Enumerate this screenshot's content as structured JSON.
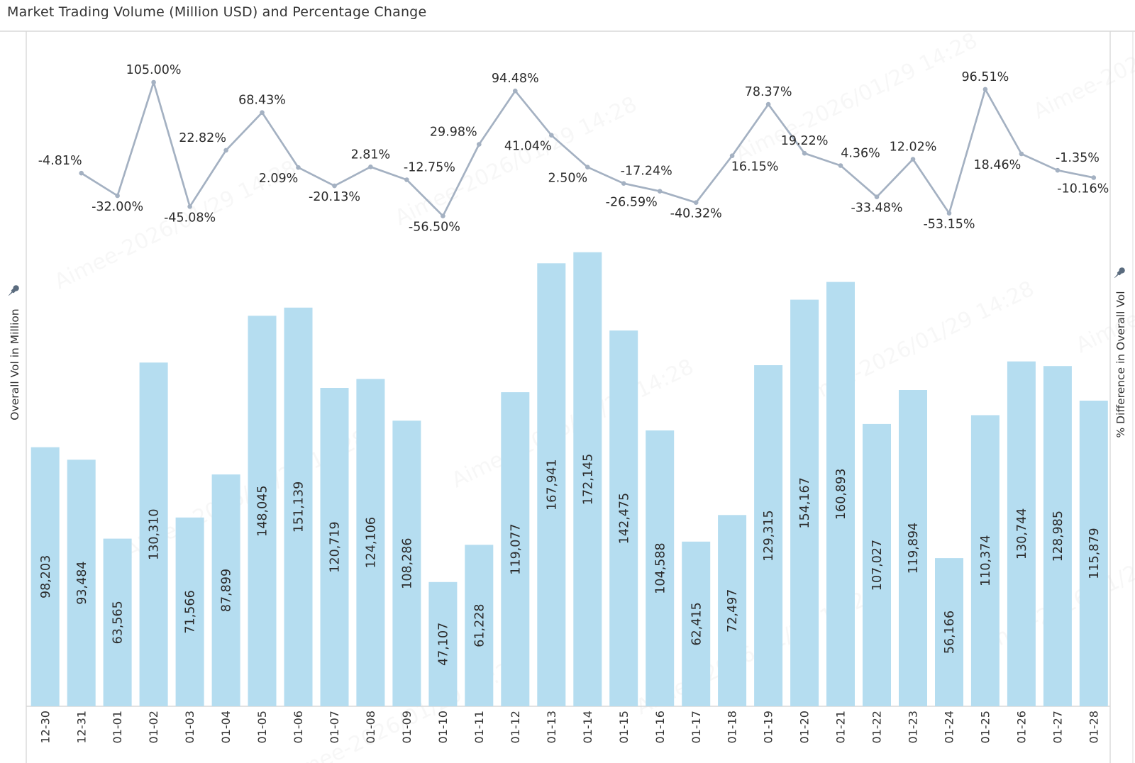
{
  "title": "Market Trading Volume (Million USD) and Percentage Change",
  "left_axis": {
    "title": "Overall Vol in Million",
    "icon": "pushpin-icon"
  },
  "right_axis": {
    "title": "% Difference in Overall Vol",
    "icon": "pushpin-icon"
  },
  "watermark_text": "Aimee-2026/01/29 14:28",
  "colors": {
    "bar": "#b5ddf0",
    "line": "#a4b1c2",
    "marker": "#a4b1c2",
    "label_text": "#2b2b2b",
    "axis_text": "#333333",
    "frame": "#d8d8d8",
    "pin": "#5a6b7e"
  },
  "chart_data": [
    {
      "type": "bar",
      "title": "Market Trading Volume (Million USD) and Percentage Change",
      "categories": [
        "12-30",
        "12-31",
        "01-01",
        "01-02",
        "01-03",
        "01-04",
        "01-05",
        "01-06",
        "01-07",
        "01-08",
        "01-09",
        "01-10",
        "01-11",
        "01-12",
        "01-13",
        "01-14",
        "01-15",
        "01-16",
        "01-17",
        "01-18",
        "01-19",
        "01-20",
        "01-21",
        "01-22",
        "01-23",
        "01-24",
        "01-25",
        "01-26",
        "01-27",
        "01-28"
      ],
      "values": [
        98203,
        93484,
        63565,
        130310,
        71566,
        87899,
        148045,
        151139,
        120719,
        124106,
        108286,
        47107,
        61228,
        119077,
        167941,
        172145,
        142475,
        104588,
        62415,
        72497,
        129315,
        154167,
        160893,
        107027,
        119894,
        56166,
        110374,
        130744,
        128985,
        115879
      ],
      "value_labels": [
        "98,203",
        "93,484",
        "63,565",
        "130,310",
        "71,566",
        "87,899",
        "148,045",
        "151,139",
        "120,719",
        "124,106",
        "108,286",
        "47,107",
        "61,228",
        "119,077",
        "167,941",
        "172,145",
        "142,475",
        "104,588",
        "62,415",
        "72,497",
        "129,315",
        "154,167",
        "160,893",
        "107,027",
        "119,894",
        "56,166",
        "110,374",
        "130,744",
        "128,985",
        "115,879"
      ],
      "xlabel": "",
      "ylabel": "Overall Vol in Million",
      "ylim": [
        0,
        180000
      ],
      "grid": false,
      "legend": "none"
    },
    {
      "type": "line",
      "categories": [
        "12-31",
        "01-01",
        "01-02",
        "01-03",
        "01-04",
        "01-05",
        "01-06",
        "01-07",
        "01-08",
        "01-09",
        "01-10",
        "01-11",
        "01-12",
        "01-13",
        "01-14",
        "01-15",
        "01-16",
        "01-17",
        "01-18",
        "01-19",
        "01-20",
        "01-21",
        "01-22",
        "01-23",
        "01-24",
        "01-25",
        "01-26",
        "01-27",
        "01-28"
      ],
      "values": [
        -4.81,
        -32.0,
        105.0,
        -45.08,
        22.82,
        68.43,
        2.09,
        -20.13,
        2.81,
        -12.75,
        -56.5,
        29.98,
        94.48,
        41.04,
        2.5,
        -17.24,
        -26.59,
        -40.32,
        16.15,
        78.37,
        19.22,
        4.36,
        -33.48,
        12.02,
        -53.15,
        96.51,
        18.46,
        -1.35,
        -10.16
      ],
      "point_labels": [
        "-4.81%",
        "-32.00%",
        "105.00%",
        "-45.08%",
        "22.82%",
        "68.43%",
        "2.09%",
        "-20.13%",
        "2.81%",
        "-12.75%",
        "-56.50%",
        "29.98%",
        "94.48%",
        "41.04%",
        "2.50%",
        "-17.24%",
        "-26.59%",
        "-40.32%",
        "16.15%",
        "78.37%",
        "19.22%",
        "4.36%",
        "-33.48%",
        "12.02%",
        "-53.15%",
        "96.51%",
        "18.46%",
        "-1.35%",
        "-10.16%"
      ],
      "label_placement": [
        {
          "pos": "above",
          "dx": -30
        },
        {
          "pos": "below",
          "dx": 0
        },
        {
          "pos": "above",
          "dx": 0
        },
        {
          "pos": "below",
          "dx": 0
        },
        {
          "pos": "above",
          "dx": -33
        },
        {
          "pos": "above",
          "dx": 0
        },
        {
          "pos": "below",
          "dx": -28
        },
        {
          "pos": "below",
          "dx": 0
        },
        {
          "pos": "above",
          "dx": 0
        },
        {
          "pos": "above",
          "dx": 32
        },
        {
          "pos": "below",
          "dx": -12
        },
        {
          "pos": "above",
          "dx": -36
        },
        {
          "pos": "above",
          "dx": 0
        },
        {
          "pos": "below",
          "dx": -33
        },
        {
          "pos": "below",
          "dx": -28
        },
        {
          "pos": "above",
          "dx": 32
        },
        {
          "pos": "below",
          "dx": -40
        },
        {
          "pos": "below",
          "dx": 0
        },
        {
          "pos": "below",
          "dx": 32
        },
        {
          "pos": "above",
          "dx": 0
        },
        {
          "pos": "above",
          "dx": 0
        },
        {
          "pos": "above",
          "dx": 28
        },
        {
          "pos": "below",
          "dx": 0
        },
        {
          "pos": "above",
          "dx": 0
        },
        {
          "pos": "below",
          "dx": 0
        },
        {
          "pos": "above",
          "dx": 0
        },
        {
          "pos": "below",
          "dx": -34
        },
        {
          "pos": "above",
          "dx": 28
        },
        {
          "pos": "below",
          "dx": -15
        }
      ],
      "ylabel": "% Difference in Overall Vol",
      "grid": false,
      "legend": "none"
    }
  ]
}
